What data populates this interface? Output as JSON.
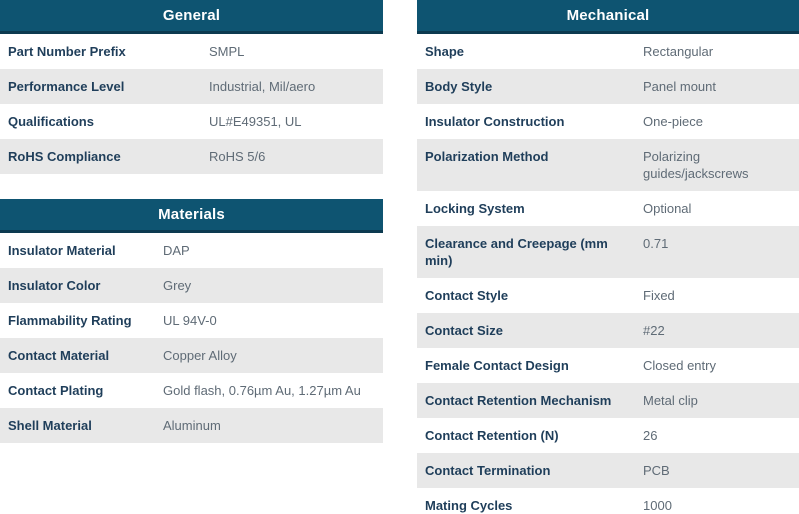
{
  "theme": {
    "header_bg": "#0e5471",
    "header_border": "#0c3a50",
    "alt_row_bg": "#e8e8e8",
    "label_color": "#1f3e5a",
    "value_color": "#5f6b76",
    "header_text_color": "#ffffff"
  },
  "general": {
    "title": "General",
    "rows": [
      {
        "label": "Part Number Prefix",
        "value": "SMPL"
      },
      {
        "label": "Performance Level",
        "value": "Industrial, Mil/aero"
      },
      {
        "label": "Qualifications",
        "value": "UL#E49351, UL"
      },
      {
        "label": "RoHS Compliance",
        "value": "RoHS 5/6"
      }
    ]
  },
  "materials": {
    "title": "Materials",
    "rows": [
      {
        "label": "Insulator Material",
        "value": "DAP"
      },
      {
        "label": "Insulator Color",
        "value": "Grey"
      },
      {
        "label": "Flammability Rating",
        "value": "UL 94V-0"
      },
      {
        "label": "Contact Material",
        "value": "Copper Alloy"
      },
      {
        "label": "Contact Plating",
        "value": "Gold flash, 0.76µm Au, 1.27µm Au"
      },
      {
        "label": "Shell Material",
        "value": "Aluminum"
      }
    ]
  },
  "mechanical": {
    "title": "Mechanical",
    "rows": [
      {
        "label": "Shape",
        "value": "Rectangular"
      },
      {
        "label": "Body Style",
        "value": "Panel mount"
      },
      {
        "label": "Insulator Construction",
        "value": "One-piece"
      },
      {
        "label": "Polarization Method",
        "value": "Polarizing guides/jackscrews"
      },
      {
        "label": "Locking System",
        "value": "Optional"
      },
      {
        "label": "Clearance and Creepage (mm min)",
        "value": "0.71"
      },
      {
        "label": "Contact Style",
        "value": "Fixed"
      },
      {
        "label": "Contact Size",
        "value": "#22"
      },
      {
        "label": "Female Contact Design",
        "value": "Closed entry"
      },
      {
        "label": "Contact Retention Mechanism",
        "value": "Metal clip"
      },
      {
        "label": "Contact Retention (N)",
        "value": "26"
      },
      {
        "label": "Contact Termination",
        "value": "PCB"
      },
      {
        "label": "Mating Cycles",
        "value": "1000"
      }
    ]
  }
}
